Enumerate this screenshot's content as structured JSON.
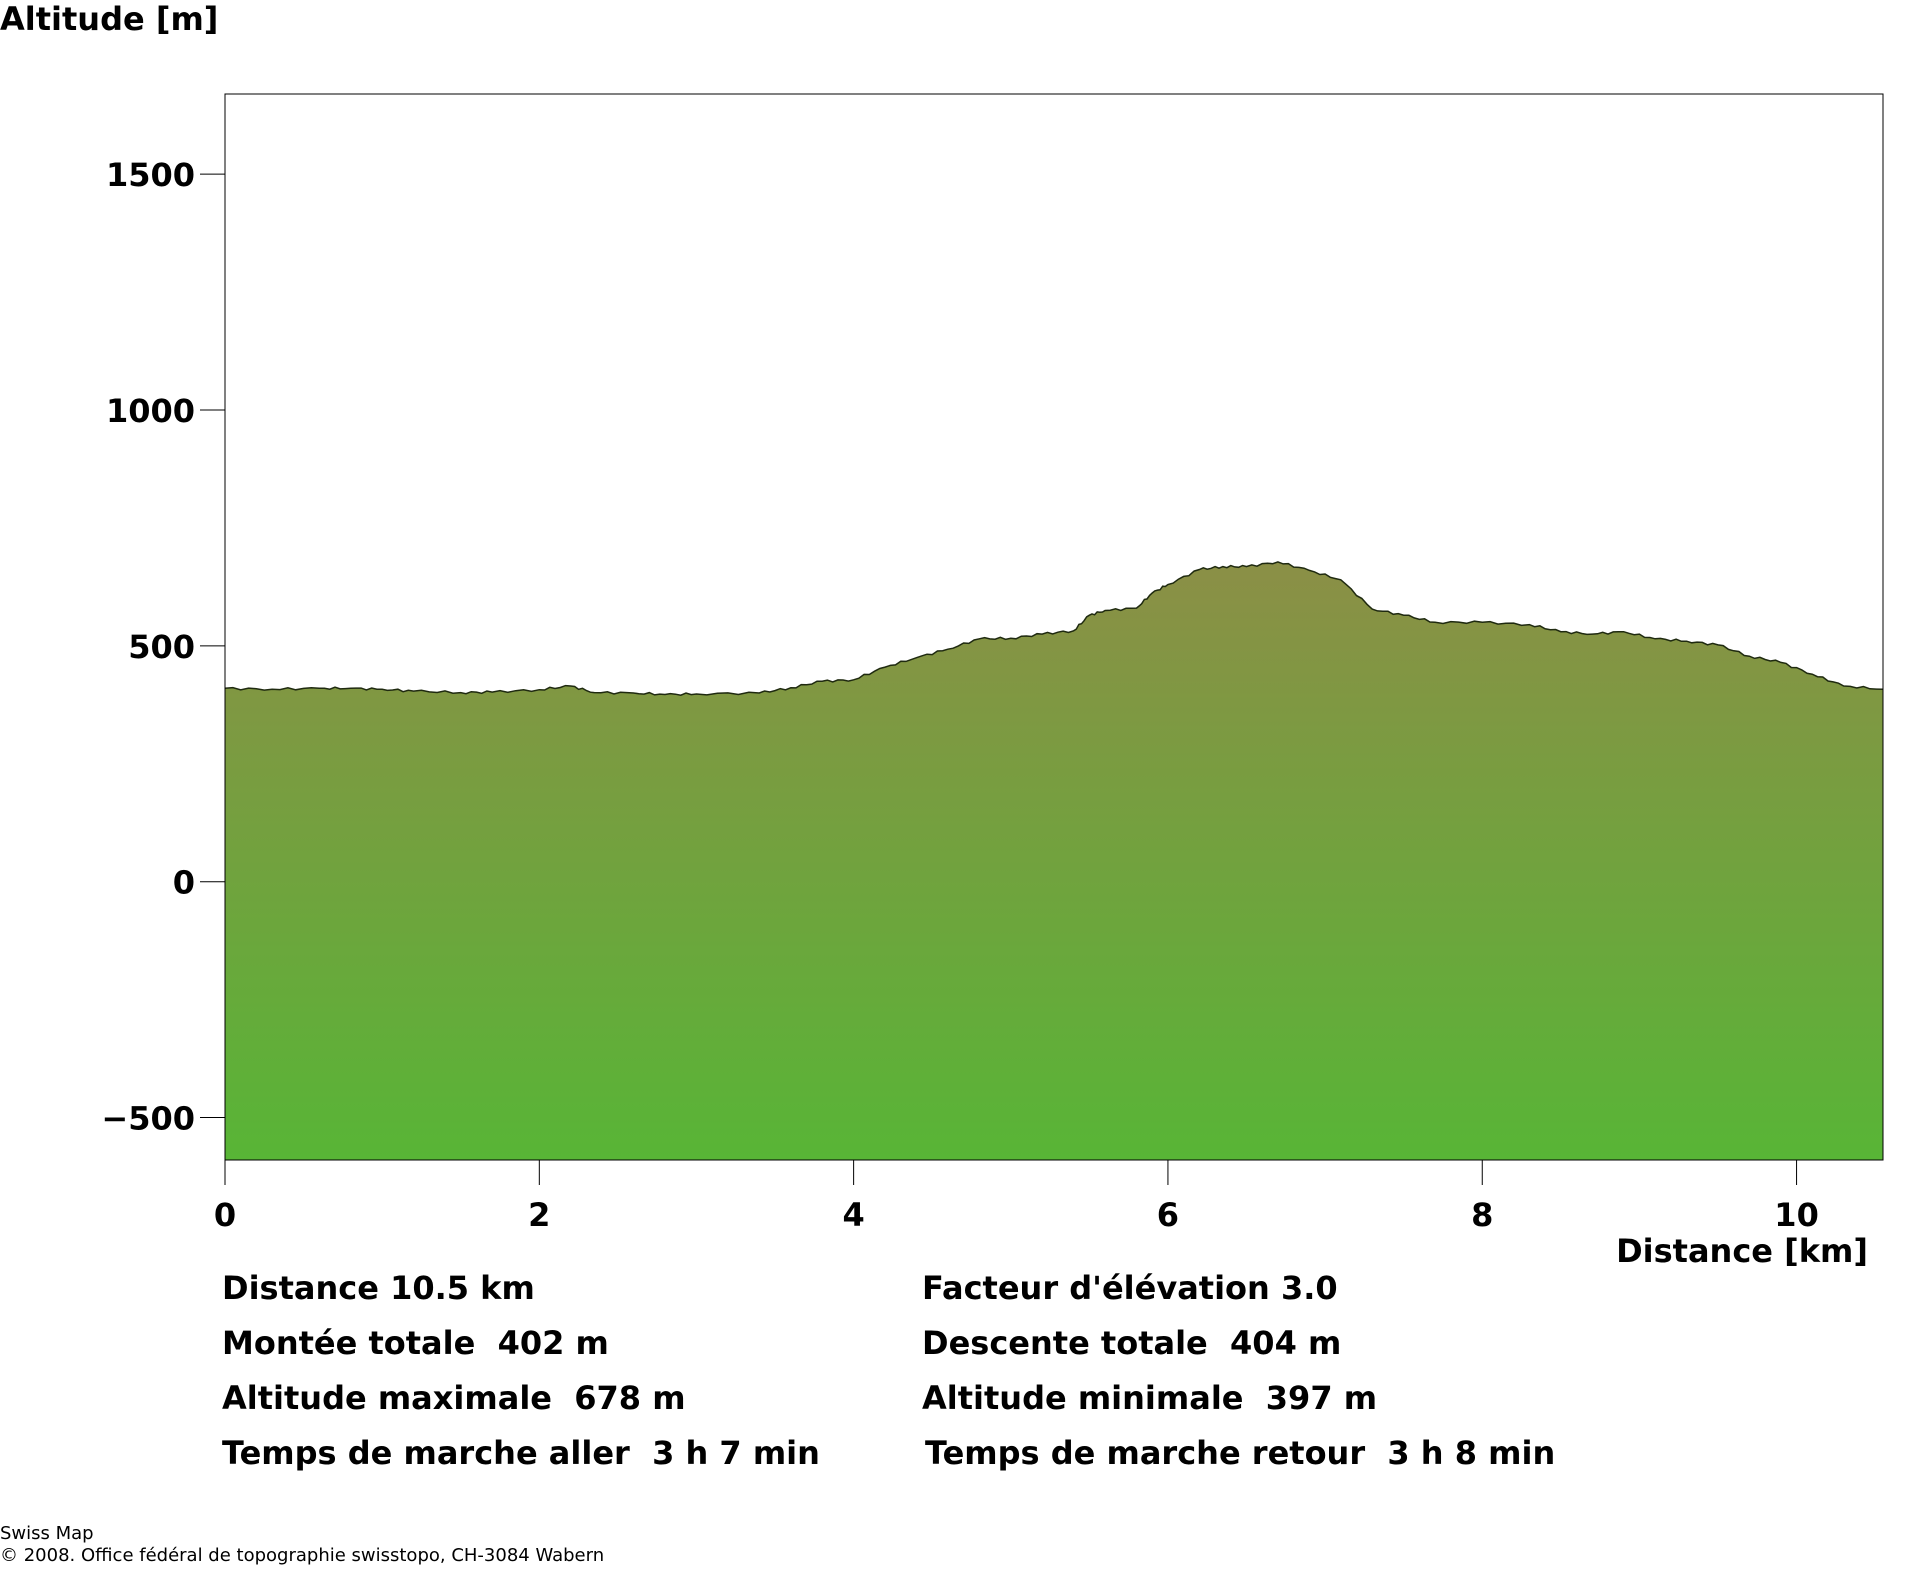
{
  "chart_data": {
    "type": "area",
    "ylabel": "Altitude [m]",
    "xlabel": "Distance [km]",
    "xlim": [
      0,
      10.55
    ],
    "ylim": [
      -590,
      1670
    ],
    "x_ticks": [
      0,
      2,
      4,
      6,
      8,
      10
    ],
    "y_ticks": [
      -500,
      0,
      500,
      1000,
      1500
    ],
    "x_tick_labels": [
      "0",
      "2",
      "4",
      "6",
      "8",
      "10"
    ],
    "y_tick_labels": [
      "−500",
      "0",
      "500",
      "1000",
      "1500"
    ],
    "grid": false,
    "fill_colors": {
      "top": "#8b8f46",
      "bottom": "#58b536"
    },
    "outline_color": "#1f2a10",
    "x": [
      0,
      0.3,
      0.6,
      0.8,
      1.0,
      1.2,
      1.5,
      1.7,
      2.0,
      2.2,
      2.35,
      2.6,
      2.8,
      3.0,
      3.4,
      3.6,
      3.8,
      4.0,
      4.2,
      4.4,
      4.6,
      4.8,
      5.0,
      5.2,
      5.4,
      5.5,
      5.6,
      5.8,
      5.9,
      6.0,
      6.2,
      6.35,
      6.5,
      6.7,
      6.9,
      7.1,
      7.3,
      7.5,
      7.7,
      8.0,
      8.3,
      8.5,
      8.7,
      8.9,
      9.1,
      9.3,
      9.5,
      9.7,
      9.9,
      10.1,
      10.3,
      10.55
    ],
    "y": [
      410,
      408,
      410,
      410,
      408,
      404,
      401,
      402,
      407,
      415,
      401,
      400,
      397,
      398,
      400,
      411,
      425,
      428,
      455,
      475,
      493,
      515,
      516,
      525,
      532,
      565,
      575,
      580,
      612,
      630,
      662,
      668,
      668,
      678,
      660,
      640,
      578,
      565,
      550,
      550,
      545,
      530,
      525,
      530,
      515,
      510,
      502,
      478,
      465,
      440,
      415,
      408
    ],
    "stats": {
      "distance": "Distance 10.5 km",
      "elevation_factor": "Facteur d'élévation 3.0",
      "total_ascent": "Montée totale  402 m",
      "total_descent": "Descente totale  404 m",
      "max_altitude": "Altitude maximale  678 m",
      "min_altitude": "Altitude minimale  397 m",
      "walk_time_out": "Temps de marche aller  3 h 7 min",
      "walk_time_back": "Temps de marche retour  3 h 8 min"
    }
  },
  "footer": {
    "line1": "Swiss Map",
    "line2": "© 2008. Office fédéral de topographie swisstopo, CH-3084 Wabern"
  }
}
